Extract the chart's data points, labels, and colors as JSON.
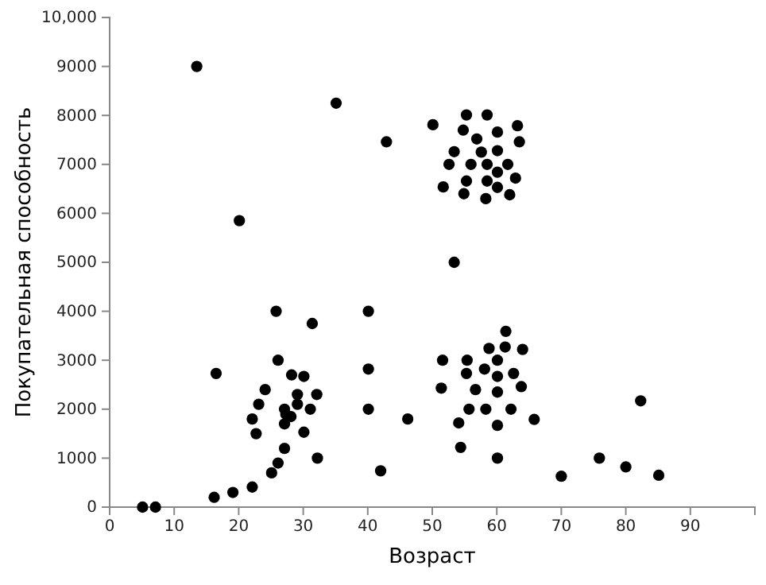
{
  "chart_data": {
    "type": "scatter",
    "xlabel": "Возраст",
    "ylabel": "Покупательная способность",
    "xlim": [
      0,
      100
    ],
    "xticks": [
      0,
      10,
      20,
      30,
      40,
      50,
      60,
      70,
      80,
      90
    ],
    "ylim": [
      0,
      10000
    ],
    "yticks": [
      0,
      1000,
      2000,
      3000,
      4000,
      5000,
      6000,
      7000,
      8000,
      9000,
      {
        "value": 10000,
        "label": "10,000"
      }
    ],
    "grid": false,
    "marker": "circle",
    "series": [
      {
        "color": "#000000",
        "x": [
          5.1,
          7.1,
          13.5,
          16.2,
          16.5,
          19.1,
          20.1,
          22.1,
          22.1,
          22.7,
          23.1,
          24.1,
          25.1,
          25.8,
          26.1,
          26.1,
          27.1,
          27.1,
          27.1,
          27.3,
          28.1,
          28.2,
          29.1,
          29.1,
          30.1,
          30.1,
          31.1,
          31.4,
          32.1,
          32.2,
          35.1,
          40.1,
          40.1,
          40.1,
          42.0,
          42.9,
          46.2,
          50.1,
          51.4,
          51.6,
          51.7,
          52.6,
          53.4,
          53.4,
          54.1,
          54.4,
          54.8,
          54.9,
          55.3,
          55.3,
          55.3,
          55.4,
          55.7,
          56.0,
          56.7,
          56.9,
          57.6,
          58.1,
          58.3,
          58.3,
          58.5,
          58.5,
          58.5,
          58.8,
          60.1,
          60.1,
          60.1,
          60.1,
          60.1,
          60.1,
          60.1,
          60.1,
          60.1,
          61.3,
          61.4,
          61.7,
          62.0,
          62.2,
          62.6,
          62.9,
          63.2,
          63.5,
          63.8,
          64.0,
          65.8,
          70.0,
          75.9,
          80.0,
          82.3,
          85.1
        ],
        "values": [
          0,
          0,
          9000,
          200,
          2730,
          300,
          5850,
          410,
          1800,
          1500,
          2100,
          2400,
          700,
          4000,
          3000,
          900,
          1200,
          1700,
          2000,
          1900,
          1850,
          2700,
          2300,
          2100,
          2670,
          1530,
          2000,
          3750,
          2300,
          1000,
          8250,
          4000,
          2820,
          2000,
          740,
          7460,
          1800,
          7810,
          2430,
          3000,
          6540,
          7000,
          5000,
          7260,
          1720,
          1220,
          7700,
          6400,
          8010,
          6660,
          2730,
          3000,
          2000,
          7000,
          2400,
          7520,
          7250,
          2820,
          2000,
          6300,
          8010,
          6660,
          7000,
          3240,
          7660,
          7280,
          6840,
          6530,
          3000,
          2670,
          2350,
          1670,
          1000,
          3270,
          3590,
          7000,
          6380,
          2000,
          2730,
          6720,
          7790,
          7460,
          2460,
          3220,
          1790,
          630,
          1000,
          820,
          2170,
          650
        ]
      }
    ]
  }
}
